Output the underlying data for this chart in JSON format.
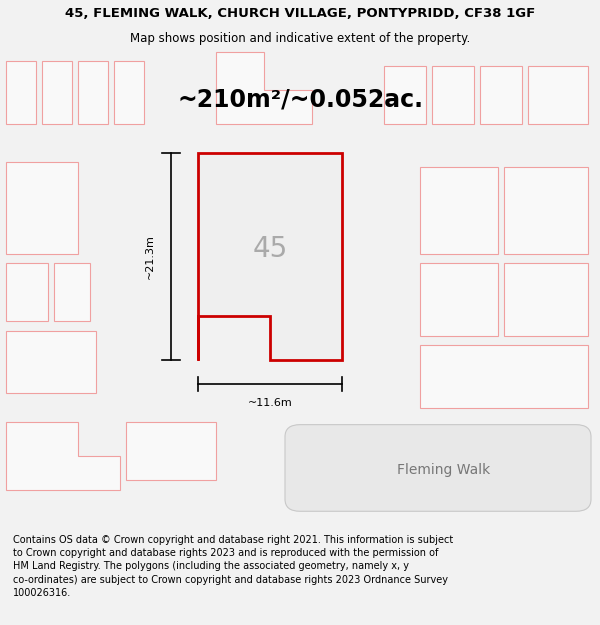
{
  "title_line1": "45, FLEMING WALK, CHURCH VILLAGE, PONTYPRIDD, CF38 1GF",
  "title_line2": "Map shows position and indicative extent of the property.",
  "area_text": "~210m²/~0.052ac.",
  "label_45": "45",
  "label_height": "~21.3m",
  "label_width": "~11.6m",
  "label_fleming": "Fleming Walk",
  "footer_text": "Contains OS data © Crown copyright and database right 2021. This information is subject\nto Crown copyright and database rights 2023 and is reproduced with the permission of\nHM Land Registry. The polygons (including the associated geometry, namely x, y\nco-ordinates) are subject to Crown copyright and database rights 2023 Ordnance Survey\n100026316.",
  "bg_color": "#f2f2f2",
  "map_bg_color": "#ffffff",
  "property_fill": "#efefef",
  "property_stroke": "#cc0000",
  "neighbor_stroke": "#f0a0a0",
  "neighbor_fill": "#f9f9f9",
  "title_fontsize": 9.5,
  "subtitle_fontsize": 8.5,
  "area_fontsize": 17,
  "label_fontsize": 20,
  "measure_fontsize": 8,
  "footer_fontsize": 7,
  "fleming_fontsize": 10
}
